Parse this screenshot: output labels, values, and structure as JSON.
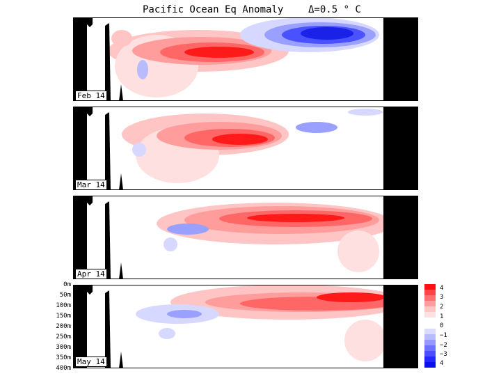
{
  "title": {
    "text": "Pacific Ocean Eq Anomaly",
    "interval": "Δ=0.5 ° C"
  },
  "panels": [
    {
      "label": "Feb 14"
    },
    {
      "label": "Mar 14"
    },
    {
      "label": "Apr 14"
    },
    {
      "label": "May 14"
    }
  ],
  "depth_axis": [
    "0m",
    "50m",
    "100m",
    "150m",
    "200m",
    "250m",
    "300m",
    "350m",
    "400m"
  ],
  "legend": {
    "labels": [
      "4",
      "3",
      "2",
      "1",
      "0",
      "−1",
      "−2",
      "−3",
      "4"
    ],
    "colors": [
      "#ff1010",
      "#ff4444",
      "#ff7070",
      "#ff9c9c",
      "#ffc4c4",
      "#ffe0e0",
      "#ffffff",
      "#ffffff",
      "#dadcff",
      "#b8bcff",
      "#9498ff",
      "#6e72ff",
      "#4a4eff",
      "#2428ff",
      "#0a0ff0"
    ]
  },
  "colors": {
    "land": "#000000",
    "warm_strong": "#ff1a1a",
    "warm_mid": "#ff6666",
    "warm_light": "#ffc4c4",
    "cool_strong": "#1a22e8",
    "cool_mid": "#6a70ff",
    "cool_light": "#d6d8ff"
  }
}
